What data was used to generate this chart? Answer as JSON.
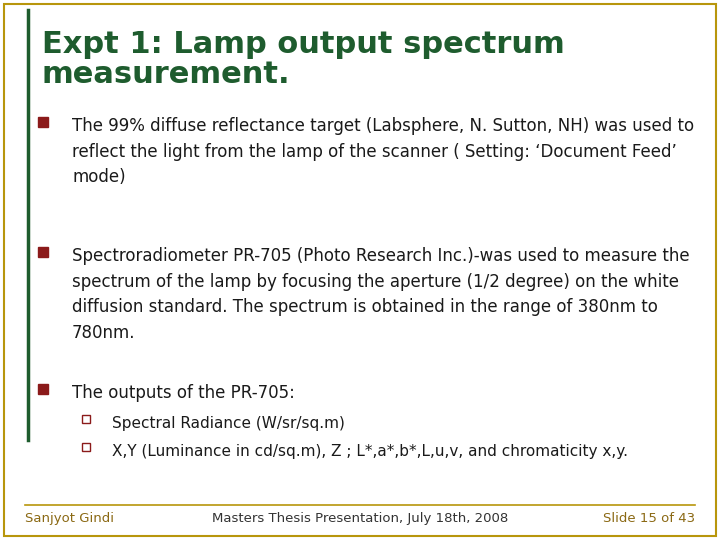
{
  "title_line1": "Expt 1: Lamp output spectrum",
  "title_line2": "measurement.",
  "title_color": "#1E5C2E",
  "title_fontsize": 22,
  "background_color": "#FFFFFF",
  "border_color": "#B8960C",
  "bullet_square_color": "#8B1A1A",
  "body_color": "#1A1A1A",
  "body_fontsize": 12.0,
  "sub_bullet_fontsize": 11.0,
  "footer_color": "#8B6914",
  "footer_center_color": "#333333",
  "footer_fontsize": 9.5,
  "accent_line_color": "#1E5C2E",
  "bullets": [
    {
      "text": "The 99% diffuse reflectance target (Labsphere, N. Sutton, NH) was used to reflect the light from the lamp of the scanner ( Setting: ‘Document Feed’ mode)",
      "level": 1
    },
    {
      "text": "Spectroradiometer PR-705 (Photo Research Inc.)-was used to measure the spectrum of the lamp by focusing the aperture (1/2 degree) on the white diffusion standard. The spectrum is obtained in the range of 380nm to 780nm.",
      "level": 1
    },
    {
      "text": "The outputs of the PR-705:",
      "level": 1
    },
    {
      "text": "Spectral Radiance (W/sr/sq.m)",
      "level": 2
    },
    {
      "text": "X,Y (Luminance in cd/sq.m), Z ; L*,a*,b*,L,u,v, and chromaticity x,y.",
      "level": 2
    }
  ],
  "footer_left": "Sanjyot Gindi",
  "footer_center": "Masters Thesis Presentation, July 18th, 2008",
  "footer_right": "Slide 15 of 43"
}
